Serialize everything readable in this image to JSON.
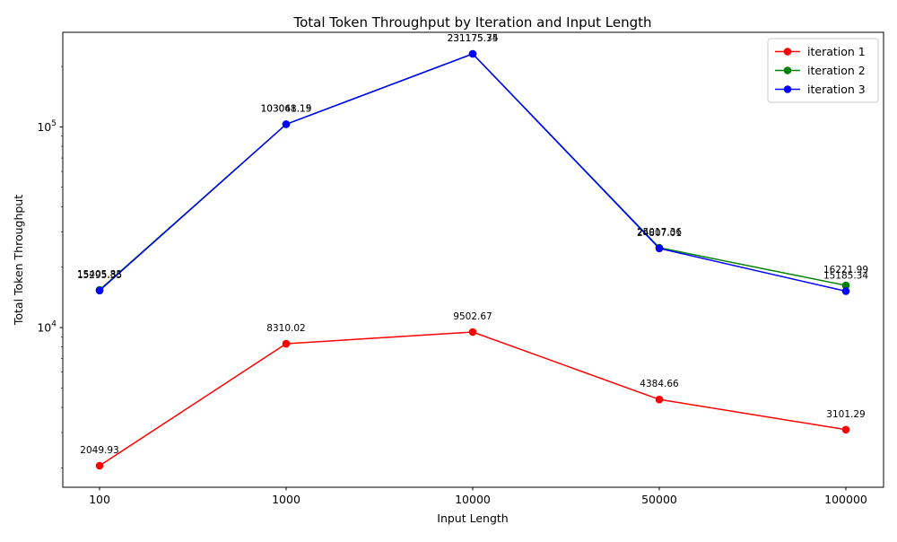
{
  "chart_data": {
    "type": "line",
    "title": "Total Token Throughput by Iteration and Input Length",
    "xlabel": "Input Length",
    "ylabel": "Total Token Throughput",
    "yscale": "log",
    "ylim": [
      1700,
      290000
    ],
    "grid": false,
    "legend_position": "top-right",
    "categories": [
      "100",
      "1000",
      "10000",
      "50000",
      "100000"
    ],
    "y_ticks": [
      {
        "value": 10000,
        "base": "10",
        "exp": "4"
      },
      {
        "value": 100000,
        "base": "10",
        "exp": "5"
      }
    ],
    "series": [
      {
        "name": "iteration 1",
        "color": "#ff0000",
        "values": [
          2049.93,
          8310.02,
          9502.67,
          4384.66,
          3101.29
        ],
        "labels": [
          "2049.93",
          "8310.02",
          "9502.67",
          "4384.66",
          "3101.29"
        ]
      },
      {
        "name": "iteration 2",
        "color": "#008000",
        "values": [
          15405.83,
          103061.19,
          231175.74,
          25017.36,
          16221.99
        ],
        "labels": [
          "15405.83",
          "103061.19",
          "231175.74",
          "25017.36",
          "16221.99"
        ]
      },
      {
        "name": "iteration 3",
        "color": "#0000ff",
        "values": [
          15295.35,
          103048.15,
          231175.35,
          24807.01,
          15185.34
        ],
        "labels": [
          "15295.35",
          "103048.15",
          "231175.35",
          "24807.01",
          "15185.34"
        ]
      }
    ]
  }
}
